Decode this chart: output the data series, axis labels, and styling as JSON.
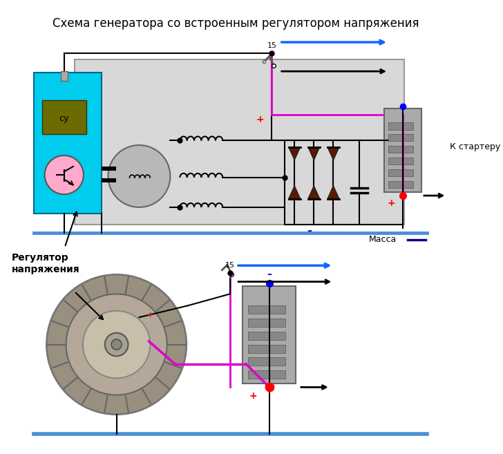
{
  "title": "Схема генератора со встроенным регулятором напряжения",
  "title_fontsize": 12,
  "bg_color": "#ffffff",
  "cyan_box_color": "#00ccee",
  "label_massa": "Масса",
  "label_starter": "К стартеру",
  "label_regulator": "Регулятор\nнапряжения",
  "label_15": "15",
  "label_su": "су",
  "ground_bar_color": "#4a90d9",
  "diode_color": "#5a1a00",
  "pink_wire": "#dd00cc",
  "blue_arrow": "#1166ff"
}
